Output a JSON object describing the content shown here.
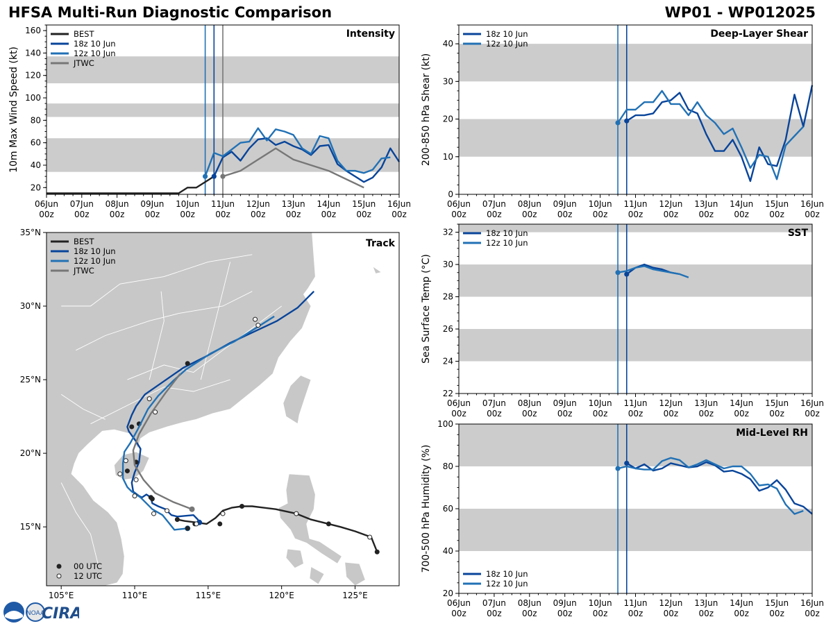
{
  "header": {
    "title": "HFSA Multi-Run Diagnostic Comparison",
    "storm_id": "WP01 - WP012025"
  },
  "colors": {
    "best": "#222222",
    "run_18z": "#08449a",
    "run_12z": "#2171b5",
    "jtwc": "#777777",
    "band": "#cccccc",
    "land": "#c8c8c8",
    "ocean": "#ffffff"
  },
  "time_axis": {
    "day_labels": [
      "06Jun",
      "07Jun",
      "08Jun",
      "09Jun",
      "10Jun",
      "11Jun",
      "12Jun",
      "13Jun",
      "14Jun",
      "15Jun",
      "16Jun"
    ],
    "hour_label": "00z",
    "range_hours": [
      0,
      240
    ]
  },
  "chart_data": [
    {
      "id": "intensity",
      "type": "line",
      "title": "Intensity",
      "ylabel": "10m Max Wind Speed (kt)",
      "ylim": [
        14,
        165
      ],
      "yticks": [
        20,
        40,
        60,
        80,
        100,
        120,
        140,
        160
      ],
      "bands": [
        [
          34,
          64
        ],
        [
          83,
          95
        ],
        [
          113,
          137
        ]
      ],
      "init_lines": [
        {
          "run": "12z 10 Jun",
          "t": 108
        },
        {
          "run": "18z 10 Jun",
          "t": 114
        },
        {
          "run": "JTWC",
          "t": 120
        }
      ],
      "legend": [
        "BEST",
        "18z 10 Jun",
        "12z 10 Jun",
        "JTWC"
      ],
      "series": [
        {
          "name": "BEST",
          "color": "best",
          "t": [
            0,
            24,
            48,
            72,
            90,
            96,
            102,
            108,
            114
          ],
          "y": [
            15,
            15,
            15,
            15,
            15,
            20,
            20,
            25,
            30
          ]
        },
        {
          "name": "18z 10 Jun",
          "color": "run_18z",
          "t": [
            114,
            120,
            126,
            132,
            138,
            144,
            150,
            156,
            162,
            168,
            174,
            180,
            186,
            192,
            198,
            204,
            210,
            216,
            222,
            228,
            234,
            240
          ],
          "y": [
            30,
            47,
            52,
            44,
            55,
            63,
            64,
            58,
            61,
            57,
            54,
            49,
            57,
            58,
            41,
            35,
            30,
            25,
            29,
            38,
            55,
            43
          ]
        },
        {
          "name": "12z 10 Jun",
          "color": "run_12z",
          "t": [
            108,
            114,
            120,
            126,
            132,
            138,
            144,
            150,
            156,
            162,
            168,
            174,
            180,
            186,
            192,
            198,
            204,
            210,
            216,
            222,
            228,
            234
          ],
          "y": [
            30,
            51,
            48,
            54,
            60,
            61,
            73,
            62,
            72,
            70,
            67,
            55,
            50,
            66,
            64,
            44,
            35,
            35,
            33,
            36,
            46,
            47
          ]
        },
        {
          "name": "JTWC",
          "color": "jtwc",
          "t": [
            120,
            132,
            144,
            156,
            168,
            192,
            216
          ],
          "y": [
            30,
            35,
            45,
            55,
            45,
            35,
            20
          ]
        }
      ]
    },
    {
      "id": "shear",
      "type": "line",
      "title": "Deep-Layer Shear",
      "ylabel": "200-850 hPa Shear (kt)",
      "ylim": [
        0,
        45
      ],
      "yticks": [
        0,
        10,
        20,
        30,
        40
      ],
      "bands": [
        [
          10,
          20
        ],
        [
          30,
          40
        ]
      ],
      "init_lines": [
        {
          "run": "12z 10 Jun",
          "t": 108
        },
        {
          "run": "18z 10 Jun",
          "t": 114
        }
      ],
      "legend": [
        "18z 10 Jun",
        "12z 10 Jun"
      ],
      "series": [
        {
          "name": "18z 10 Jun",
          "color": "run_18z",
          "t": [
            114,
            120,
            126,
            132,
            138,
            144,
            150,
            156,
            162,
            168,
            174,
            180,
            186,
            192,
            198,
            204,
            210,
            216,
            222,
            228,
            234,
            240
          ],
          "y": [
            19.5,
            21,
            21,
            21.5,
            24.5,
            25,
            27,
            22.5,
            21.5,
            16,
            11.5,
            11.5,
            14.5,
            10,
            3.5,
            12.5,
            8,
            7.5,
            14.5,
            26.5,
            18,
            29
          ]
        },
        {
          "name": "12z 10 Jun",
          "color": "run_12z",
          "t": [
            108,
            114,
            120,
            126,
            132,
            138,
            144,
            150,
            156,
            162,
            168,
            174,
            180,
            186,
            192,
            198,
            204,
            210,
            216,
            222,
            228,
            234
          ],
          "y": [
            19,
            22.5,
            22.5,
            24.5,
            24.5,
            27.5,
            24,
            24,
            21,
            24.5,
            21,
            19,
            16,
            17.5,
            12.5,
            7,
            10.5,
            10,
            4,
            13,
            15.5,
            18
          ]
        }
      ]
    },
    {
      "id": "sst",
      "type": "line",
      "title": "SST",
      "ylabel": "Sea Surface Temp (°C)",
      "ylim": [
        22,
        32.5
      ],
      "yticks": [
        22,
        24,
        26,
        28,
        30,
        32
      ],
      "bands": [
        [
          24,
          26
        ],
        [
          28,
          30
        ],
        [
          32,
          32.5
        ]
      ],
      "init_lines": [
        {
          "run": "12z 10 Jun",
          "t": 108
        },
        {
          "run": "18z 10 Jun",
          "t": 114
        }
      ],
      "legend": [
        "18z 10 Jun",
        "12z 10 Jun"
      ],
      "series": [
        {
          "name": "18z 10 Jun",
          "color": "run_18z",
          "t": [
            114,
            120,
            126,
            132,
            138,
            144,
            150
          ],
          "y": [
            29.4,
            29.8,
            30.0,
            29.8,
            29.7,
            29.5,
            29.4
          ]
        },
        {
          "name": "12z 10 Jun",
          "color": "run_12z",
          "t": [
            108,
            114,
            120,
            126,
            132,
            138,
            144,
            150,
            156
          ],
          "y": [
            29.5,
            29.6,
            29.8,
            29.9,
            29.7,
            29.6,
            29.5,
            29.4,
            29.2
          ]
        }
      ]
    },
    {
      "id": "rh",
      "type": "line",
      "title": "Mid-Level RH",
      "ylabel": "700-500 hPa Humidity (%)",
      "ylim": [
        20,
        100
      ],
      "yticks": [
        20,
        40,
        60,
        80,
        100
      ],
      "bands": [
        [
          40,
          60
        ],
        [
          80,
          100
        ]
      ],
      "init_lines": [
        {
          "run": "12z 10 Jun",
          "t": 108
        },
        {
          "run": "18z 10 Jun",
          "t": 114
        }
      ],
      "legend": [
        "18z 10 Jun",
        "12z 10 Jun"
      ],
      "series": [
        {
          "name": "18z 10 Jun",
          "color": "run_18z",
          "t": [
            114,
            120,
            126,
            132,
            138,
            144,
            150,
            156,
            162,
            168,
            174,
            180,
            186,
            192,
            198,
            204,
            210,
            216,
            222,
            228,
            234,
            240
          ],
          "y": [
            81.5,
            79,
            81,
            78,
            79,
            81.5,
            80.5,
            79.5,
            80,
            82,
            80.5,
            77.5,
            78,
            76.5,
            74,
            68.5,
            70,
            73.5,
            69,
            62.5,
            61,
            57.5
          ]
        },
        {
          "name": "12z 10 Jun",
          "color": "run_12z",
          "t": [
            108,
            114,
            120,
            126,
            132,
            138,
            144,
            150,
            156,
            162,
            168,
            174,
            180,
            186,
            192,
            198,
            204,
            210,
            216,
            222,
            228,
            234
          ],
          "y": [
            79,
            80,
            79,
            78.5,
            78.5,
            82.5,
            84,
            83,
            79.5,
            81,
            83,
            81,
            79,
            80,
            80,
            76.5,
            71,
            71.5,
            69.5,
            62,
            57.5,
            59
          ]
        }
      ]
    }
  ],
  "track": {
    "title": "Track",
    "lon_range": [
      104,
      128
    ],
    "lat_range": [
      11,
      35
    ],
    "lon_ticks": [
      105,
      110,
      115,
      120,
      125
    ],
    "lon_labels": [
      "105°E",
      "110°E",
      "115°E",
      "120°E",
      "125°E"
    ],
    "lat_ticks": [
      15,
      20,
      25,
      30,
      35
    ],
    "lat_labels": [
      "15°N",
      "20°N",
      "25°N",
      "30°N",
      "35°N"
    ],
    "legend": [
      "BEST",
      "18z 10 Jun",
      "12z 10 Jun",
      "JTWC"
    ],
    "marker_legend": [
      "00 UTC",
      "12 UTC"
    ],
    "tracks": [
      {
        "name": "BEST",
        "color": "best",
        "lon": [
          126.5,
          126.3,
          126.1,
          125.0,
          124.0,
          123.2,
          122.0,
          121.0,
          119.6,
          118.0,
          117.3,
          116.6,
          116.0,
          115.8,
          115.5,
          114.9,
          114.2,
          113.4,
          112.9
        ],
        "lat": [
          13.3,
          13.8,
          14.3,
          14.7,
          15.0,
          15.2,
          15.5,
          15.9,
          16.2,
          16.4,
          16.4,
          16.3,
          16.1,
          15.9,
          15.6,
          15.2,
          15.3,
          15.4,
          15.5
        ]
      },
      {
        "name": "18z 10 Jun",
        "color": "run_18z",
        "lon": [
          114.4,
          114.3,
          114.0,
          112.9,
          112.5,
          112.1,
          111.6,
          111.2,
          111.1,
          110.8,
          110.5,
          110.3,
          109.9,
          109.8,
          110.0,
          110.3,
          110.4,
          110.1,
          109.6,
          109.5,
          109.8,
          110.1,
          110.7,
          112.0,
          113.3,
          114.9,
          116.5,
          118.0,
          119.7,
          121.1,
          122.2
        ],
        "lat": [
          15.3,
          15.5,
          15.8,
          15.7,
          15.8,
          16.2,
          16.4,
          16.6,
          17.0,
          17.2,
          17.0,
          17.1,
          17.4,
          18.0,
          18.7,
          19.4,
          20.3,
          20.8,
          21.5,
          21.8,
          22.6,
          23.2,
          24.0,
          24.9,
          25.8,
          26.6,
          27.5,
          28.2,
          29.0,
          29.9,
          31.0
        ],
        "dots_00z": [
          [
            114.1,
            15.2
          ],
          [
            111.1,
            17.0
          ],
          [
            110.1,
            19.4
          ],
          [
            110.3,
            22.0
          ],
          [
            113.6,
            26.1
          ]
        ],
        "dots_12z": [
          [
            112.2,
            16.1
          ],
          [
            109.4,
            19.5
          ],
          [
            111.0,
            23.7
          ],
          [
            118.2,
            29.1
          ]
        ]
      },
      {
        "name": "12z 10 Jun",
        "color": "run_12z",
        "lon": [
          113.6,
          112.7,
          112.3,
          111.9,
          111.2,
          110.8,
          110.4,
          109.8,
          109.5,
          109.2,
          109.2,
          109.3,
          109.7,
          110.2,
          110.5,
          110.9,
          111.6,
          112.6,
          113.5,
          115.2,
          116.8,
          118.4,
          119.5
        ],
        "lat": [
          14.9,
          14.8,
          15.3,
          15.8,
          16.2,
          16.6,
          17.0,
          17.4,
          17.7,
          18.3,
          19.3,
          20.1,
          20.7,
          21.6,
          22.2,
          23.0,
          23.9,
          24.9,
          25.7,
          26.8,
          27.6,
          28.6,
          29.3
        ],
        "dots_00z": [
          [
            113.6,
            14.9
          ]
        ],
        "dots_12z": [
          [
            111.3,
            15.9
          ],
          [
            110.1,
            18.2
          ],
          [
            111.4,
            22.8
          ],
          [
            118.4,
            28.7
          ]
        ]
      },
      {
        "name": "JTWC",
        "color": "jtwc",
        "lon": [
          113.9,
          112.6,
          111.4,
          110.6,
          110.0,
          109.9,
          110.3,
          111.1,
          112.1,
          113.1
        ],
        "lat": [
          16.2,
          16.7,
          17.3,
          18.2,
          19.2,
          20.2,
          21.3,
          22.7,
          24.1,
          25.4
        ]
      }
    ],
    "best_dots_00z": [
      [
        126.5,
        13.3
      ],
      [
        123.2,
        15.2
      ],
      [
        117.3,
        16.4
      ],
      [
        115.8,
        15.2
      ],
      [
        112.9,
        15.5
      ],
      [
        111.2,
        16.9
      ],
      [
        109.5,
        18.8
      ],
      [
        109.8,
        21.8
      ]
    ],
    "best_dots_12z": [
      [
        126.0,
        14.3
      ],
      [
        121.0,
        15.9
      ],
      [
        116.0,
        15.9
      ],
      [
        114.2,
        15.2
      ],
      [
        110.0,
        17.1
      ],
      [
        109.0,
        18.6
      ]
    ]
  },
  "logo": {
    "wordmark": "CIRA",
    "noaa_text": "NOAA"
  }
}
